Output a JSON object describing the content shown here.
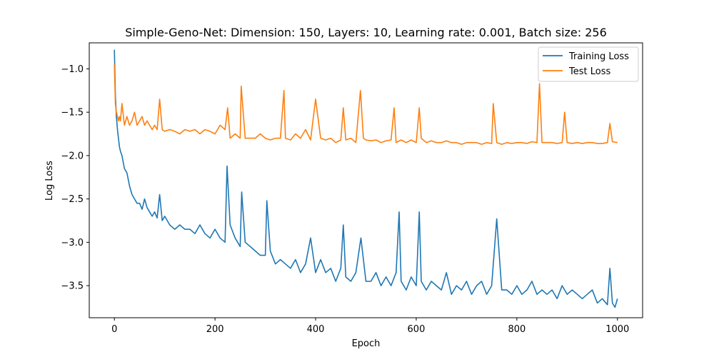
{
  "chart_data": {
    "type": "line",
    "title": "Simple-Geno-Net: Dimension: 150, Layers: 10, Learning rate: 0.001, Batch size: 256",
    "xlabel": "Epoch",
    "ylabel": "Log Loss",
    "xlim": [
      -50,
      1050
    ],
    "ylim": [
      -3.87,
      -0.7
    ],
    "xticks": [
      0,
      200,
      400,
      600,
      800,
      1000
    ],
    "yticks": [
      -1.0,
      -1.5,
      -2.0,
      -2.5,
      -3.0,
      -3.5
    ],
    "xtick_labels": [
      "0",
      "200",
      "400",
      "600",
      "800",
      "1000"
    ],
    "ytick_labels": [
      "−1.0",
      "−1.5",
      "−2.0",
      "−2.5",
      "−3.0",
      "−3.5"
    ],
    "grid": false,
    "legend_position": "top-right",
    "series": [
      {
        "name": "Training Loss",
        "color": "#1f77b4",
        "x": [
          0,
          2,
          4,
          6,
          8,
          10,
          12,
          15,
          20,
          25,
          30,
          35,
          40,
          45,
          50,
          55,
          60,
          65,
          70,
          75,
          80,
          85,
          90,
          95,
          100,
          110,
          120,
          130,
          140,
          150,
          160,
          170,
          180,
          190,
          200,
          210,
          220,
          224,
          230,
          240,
          250,
          253,
          260,
          270,
          280,
          290,
          300,
          303,
          310,
          320,
          330,
          340,
          350,
          360,
          370,
          380,
          390,
          400,
          410,
          420,
          430,
          440,
          450,
          455,
          460,
          470,
          480,
          490,
          500,
          510,
          520,
          530,
          540,
          550,
          560,
          566,
          570,
          580,
          590,
          600,
          606,
          610,
          620,
          630,
          640,
          650,
          660,
          670,
          680,
          690,
          700,
          710,
          720,
          730,
          740,
          750,
          760,
          770,
          780,
          790,
          800,
          810,
          820,
          830,
          840,
          850,
          860,
          870,
          880,
          890,
          900,
          910,
          920,
          930,
          940,
          950,
          960,
          970,
          980,
          985,
          990,
          995,
          1000
        ],
        "y": [
          -0.78,
          -1.3,
          -1.55,
          -1.7,
          -1.8,
          -1.9,
          -1.95,
          -2.0,
          -2.15,
          -2.2,
          -2.35,
          -2.45,
          -2.5,
          -2.55,
          -2.55,
          -2.62,
          -2.5,
          -2.6,
          -2.65,
          -2.7,
          -2.65,
          -2.72,
          -2.45,
          -2.75,
          -2.7,
          -2.8,
          -2.85,
          -2.8,
          -2.85,
          -2.85,
          -2.9,
          -2.8,
          -2.9,
          -2.95,
          -2.85,
          -2.95,
          -3.0,
          -2.12,
          -2.8,
          -2.95,
          -3.05,
          -2.42,
          -3.0,
          -3.05,
          -3.1,
          -3.15,
          -3.15,
          -2.52,
          -3.1,
          -3.25,
          -3.2,
          -3.25,
          -3.3,
          -3.2,
          -3.35,
          -3.25,
          -2.95,
          -3.35,
          -3.2,
          -3.35,
          -3.3,
          -3.45,
          -3.3,
          -2.8,
          -3.4,
          -3.45,
          -3.35,
          -2.95,
          -3.45,
          -3.45,
          -3.35,
          -3.5,
          -3.4,
          -3.5,
          -3.35,
          -2.65,
          -3.45,
          -3.55,
          -3.4,
          -3.5,
          -2.65,
          -3.45,
          -3.55,
          -3.45,
          -3.5,
          -3.55,
          -3.35,
          -3.6,
          -3.5,
          -3.55,
          -3.45,
          -3.6,
          -3.5,
          -3.45,
          -3.6,
          -3.5,
          -2.73,
          -3.55,
          -3.55,
          -3.6,
          -3.5,
          -3.6,
          -3.55,
          -3.45,
          -3.6,
          -3.55,
          -3.6,
          -3.55,
          -3.65,
          -3.5,
          -3.6,
          -3.55,
          -3.6,
          -3.65,
          -3.6,
          -3.55,
          -3.7,
          -3.65,
          -3.72,
          -3.3,
          -3.7,
          -3.75,
          -3.65
        ]
      },
      {
        "name": "Test Loss",
        "color": "#ff7f0e",
        "x": [
          0,
          2,
          4,
          6,
          8,
          10,
          12,
          15,
          20,
          25,
          30,
          35,
          40,
          45,
          50,
          55,
          60,
          65,
          70,
          75,
          80,
          85,
          90,
          95,
          100,
          110,
          120,
          130,
          140,
          150,
          160,
          170,
          180,
          190,
          200,
          210,
          220,
          225,
          230,
          240,
          250,
          252,
          260,
          270,
          280,
          290,
          300,
          310,
          320,
          330,
          337,
          340,
          350,
          360,
          370,
          380,
          390,
          400,
          410,
          420,
          430,
          440,
          450,
          455,
          460,
          470,
          480,
          489,
          495,
          500,
          510,
          520,
          530,
          540,
          550,
          556,
          560,
          570,
          580,
          590,
          600,
          606,
          610,
          620,
          630,
          640,
          650,
          660,
          670,
          680,
          690,
          700,
          710,
          720,
          730,
          740,
          750,
          753,
          760,
          770,
          780,
          790,
          800,
          810,
          820,
          830,
          840,
          845,
          850,
          860,
          870,
          880,
          890,
          895,
          900,
          910,
          920,
          930,
          940,
          950,
          960,
          970,
          980,
          985,
          990,
          1000
        ],
        "y": [
          -0.95,
          -1.4,
          -1.5,
          -1.55,
          -1.6,
          -1.55,
          -1.6,
          -1.4,
          -1.65,
          -1.55,
          -1.65,
          -1.6,
          -1.5,
          -1.65,
          -1.6,
          -1.55,
          -1.65,
          -1.6,
          -1.65,
          -1.7,
          -1.65,
          -1.7,
          -1.35,
          -1.7,
          -1.72,
          -1.7,
          -1.72,
          -1.75,
          -1.7,
          -1.72,
          -1.7,
          -1.75,
          -1.7,
          -1.72,
          -1.75,
          -1.65,
          -1.7,
          -1.45,
          -1.8,
          -1.75,
          -1.8,
          -1.2,
          -1.8,
          -1.8,
          -1.8,
          -1.75,
          -1.8,
          -1.82,
          -1.8,
          -1.8,
          -1.25,
          -1.8,
          -1.82,
          -1.75,
          -1.8,
          -1.7,
          -1.82,
          -1.35,
          -1.8,
          -1.82,
          -1.8,
          -1.85,
          -1.82,
          -1.45,
          -1.82,
          -1.8,
          -1.85,
          -1.25,
          -1.8,
          -1.82,
          -1.83,
          -1.82,
          -1.85,
          -1.83,
          -1.82,
          -1.45,
          -1.85,
          -1.82,
          -1.85,
          -1.82,
          -1.85,
          -1.45,
          -1.8,
          -1.85,
          -1.83,
          -1.85,
          -1.85,
          -1.83,
          -1.85,
          -1.85,
          -1.87,
          -1.85,
          -1.85,
          -1.85,
          -1.87,
          -1.85,
          -1.86,
          -1.4,
          -1.85,
          -1.87,
          -1.85,
          -1.86,
          -1.85,
          -1.85,
          -1.86,
          -1.84,
          -1.85,
          -1.17,
          -1.85,
          -1.85,
          -1.85,
          -1.86,
          -1.85,
          -1.5,
          -1.85,
          -1.86,
          -1.85,
          -1.86,
          -1.85,
          -1.85,
          -1.86,
          -1.86,
          -1.85,
          -1.63,
          -1.84,
          -1.85
        ]
      }
    ]
  }
}
